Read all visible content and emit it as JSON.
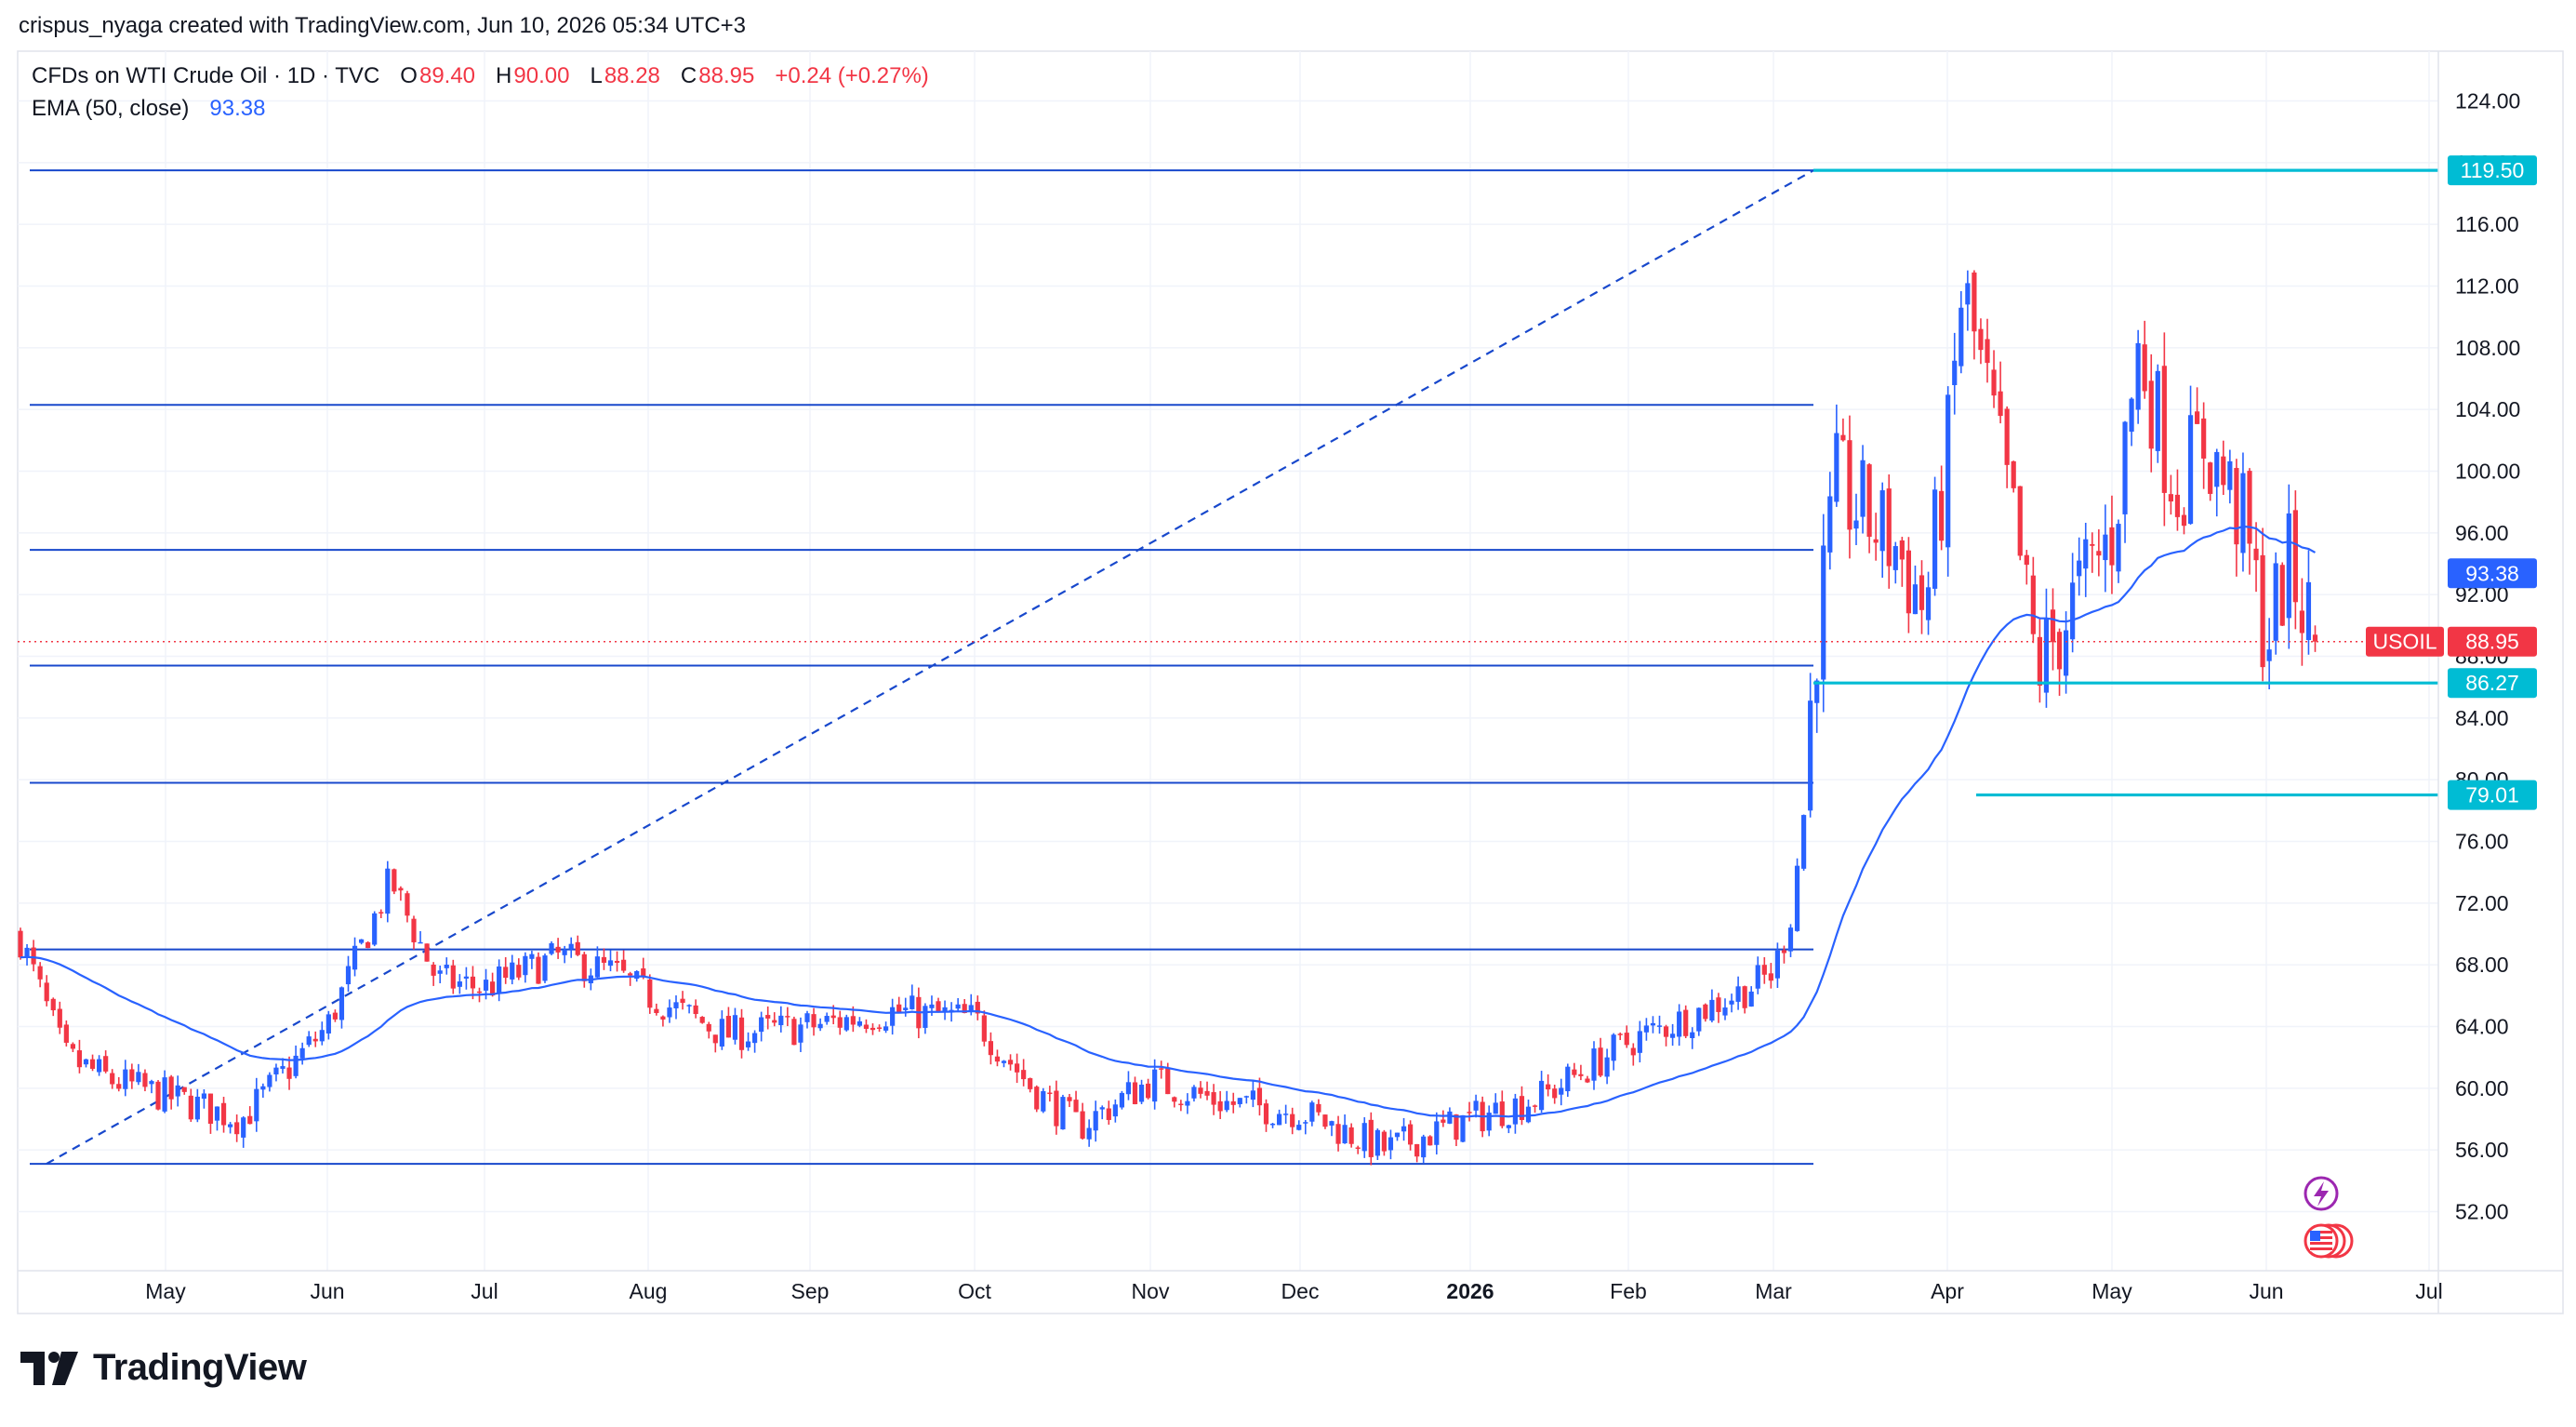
{
  "header": {
    "credit": "crispus_nyaga created with TradingView.com, Jun 10, 2026 05:34 UTC+3"
  },
  "legend": {
    "symbol": "CFDs on WTI Crude Oil · 1D · TVC",
    "o_label": "O",
    "o_value": "89.40",
    "h_label": "H",
    "h_value": "90.00",
    "l_label": "L",
    "l_value": "88.28",
    "c_label": "C",
    "c_value": "88.95",
    "change": "+0.24 (+0.27%)",
    "ema_label": "EMA (50, close)",
    "ema_value": "93.38"
  },
  "colors": {
    "up": "#2962ff",
    "down": "#f23645",
    "ema": "#2962ff",
    "fib_line": "#1848cc",
    "support": "#00bcd4",
    "grid": "#f0f3fa",
    "text": "#131722",
    "event_purple": "#9c27b0"
  },
  "price_tags": [
    {
      "label": "",
      "value": "119.50",
      "price": 119.5,
      "color": "#00bcd4"
    },
    {
      "label": "",
      "value": "93.38",
      "price": 93.38,
      "color": "#2962ff"
    },
    {
      "label": "USOIL",
      "value": "88.95",
      "price": 88.95,
      "color": "#f23645"
    },
    {
      "label": "",
      "value": "86.27",
      "price": 86.27,
      "color": "#00bcd4"
    },
    {
      "label": "",
      "value": "79.01",
      "price": 79.01,
      "color": "#00bcd4"
    }
  ],
  "footer": {
    "brand": "TradingView",
    "logo_icon": "tradingview-logo-icon"
  },
  "event_icons": [
    "lightning-event-icon",
    "us-flag-economic-event-icon"
  ],
  "chart_data": {
    "type": "candlestick",
    "title": "CFDs on WTI Crude Oil · 1D · TVC",
    "xlabel": "",
    "ylabel": "",
    "ylim": [
      48.5,
      126.5
    ],
    "y_ticks": [
      "52.00",
      "56.00",
      "60.00",
      "64.00",
      "68.00",
      "72.00",
      "76.00",
      "80.00",
      "84.00",
      "88.00",
      "92.00",
      "96.00",
      "100.00",
      "104.00",
      "108.00",
      "112.00",
      "116.00",
      "120.00",
      "124.00"
    ],
    "x_ticks": [
      "May",
      "Jun",
      "Jul",
      "Aug",
      "Sep",
      "Oct",
      "Nov",
      "Dec",
      "2026",
      "Feb",
      "Mar",
      "Apr",
      "May",
      "Jun",
      "Jul"
    ],
    "grid": true,
    "fib_levels": [
      55.1,
      69.0,
      79.8,
      87.4,
      94.9,
      104.3,
      119.5
    ],
    "fib_span": {
      "start": "Apr 2025",
      "end": "Mar 9 2026"
    },
    "horizontal_lines": [
      {
        "price": 119.5,
        "from": "Mar 9 2026"
      },
      {
        "price": 86.27,
        "from": "Mar 9 2026"
      },
      {
        "price": 79.01,
        "from": "Apr 12 2026"
      }
    ],
    "dashed_trendline": {
      "from": {
        "date": "Apr 2025",
        "price": 55.1
      },
      "to": {
        "date": "Mar 9 2026",
        "price": 119.5
      }
    },
    "last_close": 88.95,
    "series": [
      {
        "name": "USOIL daily candles",
        "anchors": [
          [
            "Apr 2025",
            70.0
          ],
          [
            "Apr 2025",
            62.0
          ],
          [
            "Apr 2025",
            60.5
          ],
          [
            "May 2025",
            59.5
          ],
          [
            "May 2025",
            58.0
          ],
          [
            "Jun 2025",
            64.0
          ],
          [
            "Jun 2025",
            73.5
          ],
          [
            "Jun 2025",
            67.0
          ],
          [
            "Jul 2025",
            66.5
          ],
          [
            "Jul 2025",
            68.5
          ],
          [
            "Jul 2025",
            67.5
          ],
          [
            "Aug 2025",
            66.0
          ],
          [
            "Aug 2025",
            63.5
          ],
          [
            "Sep 2025",
            64.0
          ],
          [
            "Sep 2025",
            65.0
          ],
          [
            "Oct 2025",
            64.5
          ],
          [
            "Oct 2025",
            60.0
          ],
          [
            "Oct 2025",
            57.5
          ],
          [
            "Nov 2025",
            60.5
          ],
          [
            "Nov 2025",
            59.0
          ],
          [
            "Dec 2025",
            58.5
          ],
          [
            "Dec 2025",
            56.0
          ],
          [
            "Jan 2026",
            58.0
          ],
          [
            "Jan 2026",
            59.5
          ],
          [
            "Feb 2026",
            63.0
          ],
          [
            "Feb 2026",
            64.5
          ],
          [
            "Feb 2026",
            66.5
          ],
          [
            "Mar 2026",
            67.5
          ],
          [
            "Mar 2026",
            71.0
          ],
          [
            "Mar 2026",
            78.0
          ],
          [
            "Mar 2026",
            88.0
          ],
          [
            "Mar 2026",
            99.0
          ],
          [
            "Mar 2026",
            95.0
          ],
          [
            "Mar 2026",
            91.0
          ],
          [
            "Apr 2026",
            101.0
          ],
          [
            "Apr 2026",
            112.0
          ],
          [
            "Apr 2026",
            104.0
          ],
          [
            "Apr 2026",
            95.0
          ],
          [
            "Apr 2026",
            87.0
          ],
          [
            "May 2026",
            96.0
          ],
          [
            "May 2026",
            108.0
          ],
          [
            "May 2026",
            99.0
          ],
          [
            "May 2026",
            102.0
          ],
          [
            "May 2026",
            97.0
          ],
          [
            "Jun 2026",
            89.0
          ],
          [
            "Jun 2026",
            94.0
          ],
          [
            "Jun 2026",
            88.95
          ]
        ]
      }
    ]
  }
}
